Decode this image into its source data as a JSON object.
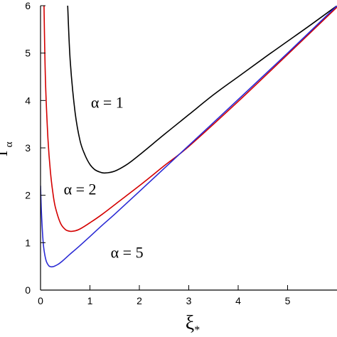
{
  "chart_data": {
    "type": "line",
    "title": "",
    "xlabel": {
      "main": "ξ",
      "sub": "*"
    },
    "ylabel": {
      "main": "T",
      "sub": "α"
    },
    "xlim": [
      0,
      6
    ],
    "ylim": [
      0,
      6
    ],
    "x_ticks": [
      0,
      1,
      2,
      3,
      4,
      5
    ],
    "y_ticks": [
      0,
      1,
      2,
      3,
      4,
      5,
      6
    ],
    "grid": false,
    "series": [
      {
        "name": "α = 1",
        "alpha": 1,
        "color": "#000000",
        "x": [
          0.55,
          0.6,
          0.7,
          0.8,
          0.9,
          1.0,
          1.1,
          1.2,
          1.3,
          1.5,
          1.75,
          2.0,
          2.5,
          3.0,
          3.5,
          4.0,
          4.5,
          5.0,
          5.5,
          6.0
        ],
        "y": [
          6.0,
          4.85,
          3.75,
          3.15,
          2.85,
          2.65,
          2.54,
          2.49,
          2.47,
          2.51,
          2.65,
          2.85,
          3.28,
          3.7,
          4.12,
          4.5,
          4.88,
          5.25,
          5.62,
          6.0
        ]
      },
      {
        "name": "α = 2",
        "alpha": 2,
        "color": "#d40000",
        "x": [
          0.07,
          0.1,
          0.15,
          0.2,
          0.25,
          0.3,
          0.4,
          0.5,
          0.6,
          0.7,
          0.8,
          1.0,
          1.25,
          1.5,
          2.0,
          2.5,
          3.0,
          4.0,
          5.0,
          6.0
        ],
        "y": [
          6.0,
          4.4,
          3.2,
          2.5,
          2.05,
          1.75,
          1.42,
          1.28,
          1.24,
          1.25,
          1.29,
          1.42,
          1.6,
          1.8,
          2.2,
          2.62,
          3.03,
          3.98,
          4.97,
          5.97
        ]
      },
      {
        "name": "α = 5",
        "alpha": 5,
        "color": "#2a2ad4",
        "x": [
          0.0,
          0.02,
          0.05,
          0.08,
          0.12,
          0.17,
          0.22,
          0.27,
          0.35,
          0.45,
          0.6,
          0.8,
          1.0,
          1.25,
          1.5,
          2.0,
          3.0,
          4.0,
          5.0,
          6.0
        ],
        "y": [
          2.2,
          1.6,
          1.05,
          0.78,
          0.6,
          0.51,
          0.49,
          0.5,
          0.54,
          0.62,
          0.76,
          0.94,
          1.13,
          1.37,
          1.6,
          2.08,
          3.05,
          4.02,
          5.0,
          6.0
        ]
      }
    ],
    "annotations": [
      {
        "text": "α = 1",
        "x": 1.35,
        "y": 3.85
      },
      {
        "text": "α = 2",
        "x": 0.8,
        "y": 2.02
      },
      {
        "text": "α = 5",
        "x": 1.75,
        "y": 0.68
      }
    ]
  }
}
